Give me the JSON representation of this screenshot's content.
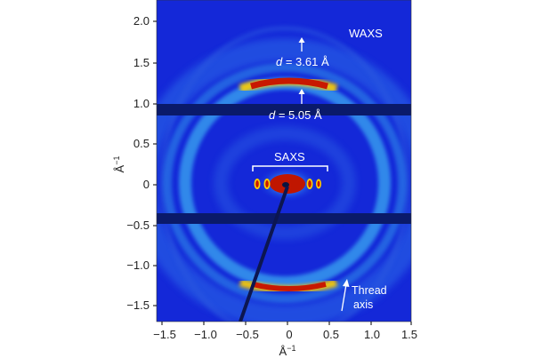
{
  "figure": {
    "labels": {
      "waxs": "WAXS",
      "saxs": "SAXS",
      "d_symbol": "d",
      "d1_value": " = 3.61 Å",
      "d2_value": " = 5.05 Å",
      "thread_line1": "Thread",
      "thread_line2": "axis"
    },
    "axes": {
      "x_label": "Å",
      "x_label_sup": "−1",
      "y_label": "Å",
      "y_label_sup": "−1",
      "x_ticks": [
        "−1.5",
        "−1.0",
        "−0.5",
        "0",
        "0.5",
        "1.0",
        "1.5"
      ],
      "y_ticks": [
        "2.0",
        "1.5",
        "1.0",
        "0.5",
        "0",
        "−0.5",
        "−1.0",
        "−1.5"
      ]
    },
    "colors": {
      "background": "#1428d8",
      "detector_gap": "#0a1a6a",
      "ring": "#3aa8f0",
      "hot": "#c81800",
      "annotation": "#ffffff"
    }
  }
}
